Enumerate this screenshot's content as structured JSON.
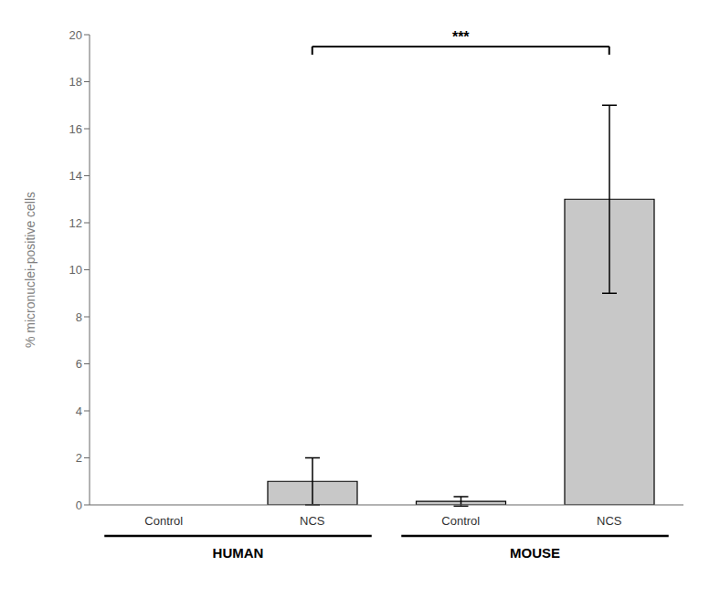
{
  "chart_data": {
    "type": "bar",
    "ylabel": "% micronuclei-positive cells",
    "categories": [
      "Control",
      "NCS",
      "Control",
      "NCS"
    ],
    "groups": [
      "HUMAN",
      "MOUSE"
    ],
    "values": [
      0.0,
      1.0,
      0.15,
      13.0
    ],
    "errors": [
      0.0,
      1.0,
      0.2,
      4.0
    ],
    "color": "#c8c8c8",
    "ylim": [
      0,
      20
    ],
    "yticks": [
      0,
      2,
      4,
      6,
      8,
      10,
      12,
      14,
      16,
      18,
      20
    ],
    "grid": false,
    "annotations": [
      {
        "text": "***",
        "bars": [
          1,
          3
        ],
        "y": 19.5
      }
    ]
  }
}
